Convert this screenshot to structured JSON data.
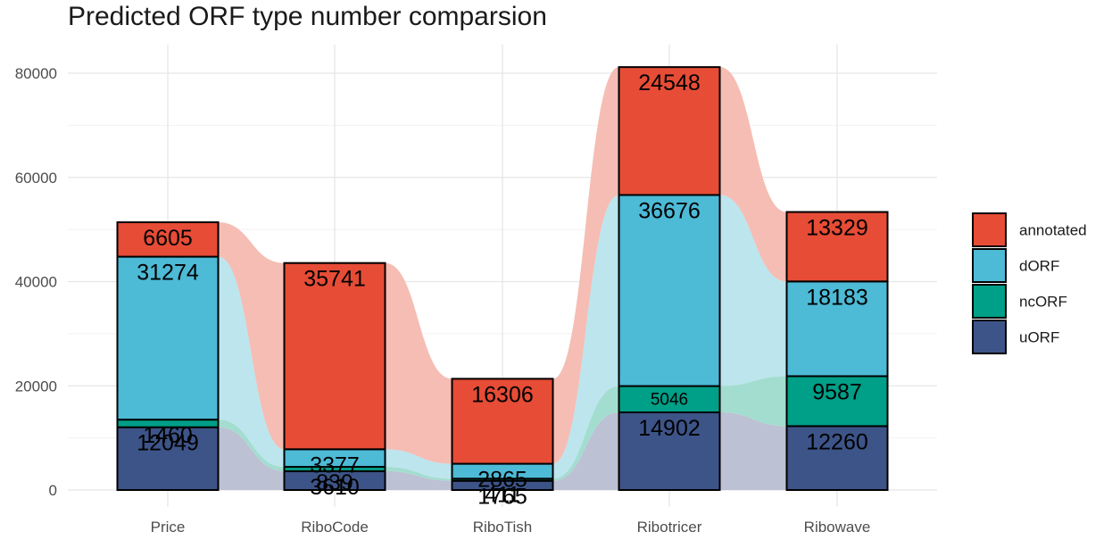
{
  "chart_data": {
    "type": "bar",
    "stacked": true,
    "title": "Predicted ORF type number comparsion",
    "xlabel": "",
    "ylabel": "",
    "categories": [
      "Price",
      "RiboCode",
      "RiboTish",
      "Ribotricer",
      "Ribowave"
    ],
    "ylim": [
      0,
      80000
    ],
    "yticks": [
      0,
      20000,
      40000,
      60000,
      80000
    ],
    "grid": true,
    "legend_position": "right",
    "series": [
      {
        "name": "uORF",
        "color": "#3D5488",
        "flow_color": "#BCC1D4",
        "values": [
          12049,
          3610,
          1765,
          14902,
          12260
        ],
        "labels": [
          "12049",
          "3610",
          "1765",
          "14902",
          "12260"
        ]
      },
      {
        "name": "ncORF",
        "color": "#009F87",
        "flow_color": "#A3DDCF",
        "values": [
          1460,
          839,
          411,
          5046,
          9587
        ],
        "labels": [
          "1460",
          "839",
          "411",
          "5046",
          "9587"
        ]
      },
      {
        "name": "dORF",
        "color": "#4DBAD6",
        "flow_color": "#BCE5EE",
        "values": [
          31274,
          3377,
          2865,
          36676,
          18183
        ],
        "labels": [
          "31274",
          "3377",
          "2865",
          "36676",
          "18183"
        ]
      },
      {
        "name": "annotated",
        "color": "#E64C36",
        "flow_color": "#F5BDB4",
        "values": [
          6605,
          35741,
          16306,
          24548,
          13329
        ],
        "labels": [
          "6605",
          "35741",
          "16306",
          "24548",
          "13329"
        ]
      }
    ],
    "legend": [
      "annotated",
      "dORF",
      "ncORF",
      "uORF"
    ]
  }
}
